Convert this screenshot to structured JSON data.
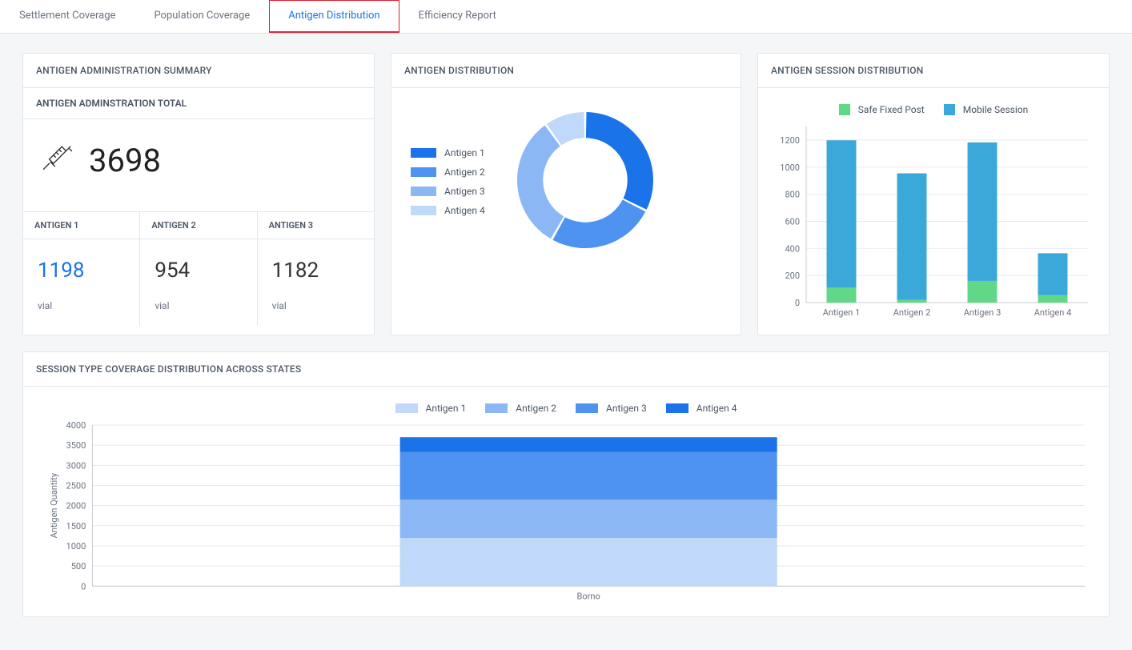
{
  "tabs": [
    {
      "label": "Settlement Coverage",
      "active": false
    },
    {
      "label": "Population Coverage",
      "active": false
    },
    {
      "label": "Antigen Distribution",
      "active": true
    },
    {
      "label": "Efficiency Report",
      "active": false
    }
  ],
  "summary": {
    "title": "ANTIGEN ADMINISTRATION SUMMARY",
    "sub_title": "ANTIGEN ADMINSTRATION TOTAL",
    "total": "3698",
    "cells": [
      {
        "head": "ANTIGEN 1",
        "value": "1198",
        "unit": "vial",
        "highlight": true
      },
      {
        "head": "ANTIGEN 2",
        "value": "954",
        "unit": "vial",
        "highlight": false
      },
      {
        "head": "ANTIGEN 3",
        "value": "1182",
        "unit": "vial",
        "highlight": false
      }
    ]
  },
  "distribution": {
    "title": "ANTIGEN DISTRIBUTION",
    "legend": [
      {
        "label": "Antigen 1",
        "color": "#1a73e8"
      },
      {
        "label": "Antigen 2",
        "color": "#4f93f0"
      },
      {
        "label": "Antigen 3",
        "color": "#8bb8f5"
      },
      {
        "label": "Antigen 4",
        "color": "#c0d8f9"
      }
    ],
    "donut": {
      "values": [
        1198,
        954,
        1182,
        364
      ],
      "colors": [
        "#1a73e8",
        "#4f93f0",
        "#8bb8f5",
        "#c0d8f9"
      ],
      "inner_ratio": 0.62,
      "gap_deg": 2
    }
  },
  "session": {
    "title": "ANTIGEN SESSION DISTRIBUTION",
    "legend": [
      {
        "label": "Safe Fixed Post",
        "color": "#61d887"
      },
      {
        "label": "Mobile Session",
        "color": "#3aa8d8"
      }
    ],
    "categories": [
      "Antigen 1",
      "Antigen 2",
      "Antigen 3",
      "Antigen 4"
    ],
    "series": {
      "safe": [
        110,
        20,
        160,
        55
      ],
      "mobile": [
        1088,
        934,
        1022,
        309
      ]
    },
    "ylim": [
      0,
      1300
    ],
    "ytick_step": 200,
    "colors": {
      "safe": "#61d887",
      "mobile": "#3aa8d8"
    },
    "grid_color": "#e8eaee",
    "axis_color": "#c9ccd1",
    "label_color": "#6b7280",
    "bar_width": 0.42
  },
  "states": {
    "title": "SESSION TYPE COVERAGE DISTRIBUTION ACROSS STATES",
    "ylabel": "Antigen Quantity",
    "legend": [
      {
        "label": "Antigen 1",
        "color": "#c0d8f9"
      },
      {
        "label": "Antigen 2",
        "color": "#8bb8f5"
      },
      {
        "label": "Antigen 3",
        "color": "#4f93f0"
      },
      {
        "label": "Antigen 4",
        "color": "#1a73e8"
      }
    ],
    "categories": [
      "Borno"
    ],
    "stacks": [
      [
        1198,
        954,
        1182,
        364
      ]
    ],
    "colors": [
      "#c0d8f9",
      "#8bb8f5",
      "#4f93f0",
      "#1a73e8"
    ],
    "ylim": [
      0,
      4000
    ],
    "ytick_step": 500,
    "grid_color": "#e8eaee",
    "axis_color": "#c9ccd1",
    "label_color": "#6b7280",
    "bar_width": 0.38
  }
}
